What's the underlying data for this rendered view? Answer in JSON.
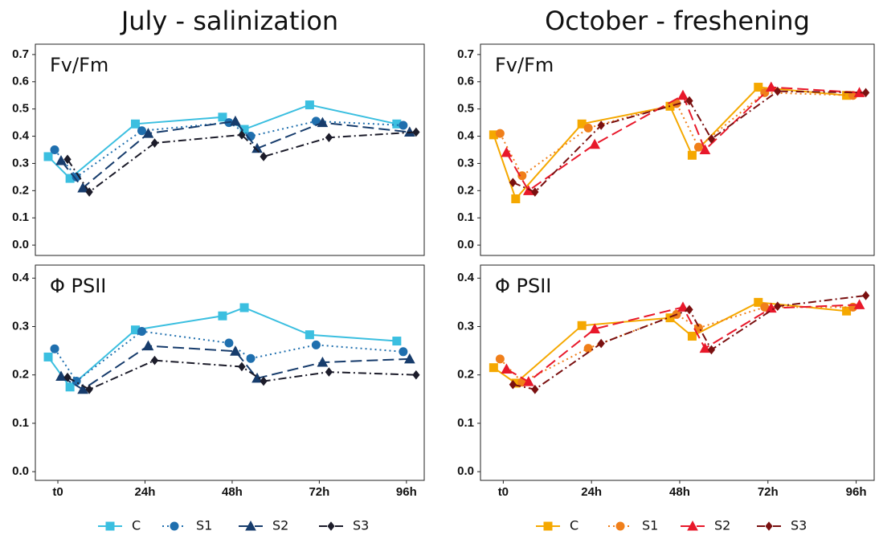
{
  "chart_data": [
    {
      "type": "line",
      "title": "July - salinization",
      "x": [
        0,
        6,
        24,
        48,
        54,
        72,
        96
      ],
      "xlim": [
        -6.2,
        100.9
      ],
      "xticks": [
        {
          "value": 0,
          "label": "t0"
        },
        {
          "value": 24,
          "label": "24h"
        },
        {
          "value": 48,
          "label": "48h"
        },
        {
          "value": 72,
          "label": "72h"
        },
        {
          "value": 96,
          "label": "96h"
        }
      ],
      "legend": [
        {
          "name": "C",
          "color": "#3bbfe0",
          "marker": "square",
          "dash": "solid"
        },
        {
          "name": "S1",
          "color": "#1f6fae",
          "marker": "circle",
          "dash": "dotted"
        },
        {
          "name": "S2",
          "color": "#173c6c",
          "marker": "triangle",
          "dash": "dashed"
        },
        {
          "name": "S3",
          "color": "#1c1c2a",
          "marker": "diamond",
          "dash": "dotdash"
        }
      ],
      "panels": [
        {
          "label": "Fv/Fm",
          "ylim": [
            -0.038,
            0.738
          ],
          "yticks": [
            {
              "value": 0,
              "label": "0.0"
            },
            0.1,
            0.2,
            0.3,
            0.4,
            0.5,
            0.6,
            0.7
          ],
          "series": [
            {
              "values": [
                0.325,
                0.245,
                0.445,
                0.47,
                0.425,
                0.515,
                0.445
              ]
            },
            {
              "values": [
                0.35,
                0.25,
                0.42,
                0.45,
                0.4,
                0.455,
                0.44
              ]
            },
            {
              "values": [
                0.31,
                0.21,
                0.41,
                0.455,
                0.355,
                0.45,
                0.415
              ]
            },
            {
              "values": [
                0.315,
                0.195,
                0.375,
                0.405,
                0.325,
                0.395,
                0.415
              ]
            }
          ]
        },
        {
          "label": "Φ PSII",
          "ylim": [
            -0.018,
            0.427
          ],
          "yticks": [
            {
              "value": 0,
              "label": "0.0"
            },
            0.1,
            0.2,
            0.3,
            0.4
          ],
          "series": [
            {
              "values": [
                0.237,
                0.175,
                0.293,
                0.322,
                0.339,
                0.283,
                0.27
              ]
            },
            {
              "values": [
                0.254,
                0.187,
                0.29,
                0.266,
                0.234,
                0.262,
                0.248
              ]
            },
            {
              "values": [
                0.197,
                0.17,
                0.26,
                0.249,
                0.193,
                0.226,
                0.233
              ]
            },
            {
              "values": [
                0.195,
                0.17,
                0.23,
                0.217,
                0.187,
                0.206,
                0.2
              ]
            }
          ]
        }
      ]
    },
    {
      "type": "line",
      "title": "October - freshening",
      "x": [
        0,
        6,
        24,
        48,
        54,
        72,
        96
      ],
      "xlim": [
        -6.2,
        100.9
      ],
      "xticks": [
        {
          "value": 0,
          "label": "t0"
        },
        {
          "value": 24,
          "label": "24h"
        },
        {
          "value": 48,
          "label": "48h"
        },
        {
          "value": 72,
          "label": "72h"
        },
        {
          "value": 96,
          "label": "96h"
        }
      ],
      "legend": [
        {
          "name": "C",
          "color": "#f5a800",
          "marker": "square",
          "dash": "solid"
        },
        {
          "name": "S1",
          "color": "#f07f1a",
          "marker": "circle",
          "dash": "dotted"
        },
        {
          "name": "S2",
          "color": "#e8182a",
          "marker": "triangle",
          "dash": "dashed"
        },
        {
          "name": "S3",
          "color": "#7a1010",
          "marker": "diamond",
          "dash": "dotdash"
        }
      ],
      "panels": [
        {
          "label": "Fv/Fm",
          "ylim": [
            -0.038,
            0.738
          ],
          "yticks": [
            {
              "value": 0,
              "label": "0.0"
            },
            0.1,
            0.2,
            0.3,
            0.4,
            0.5,
            0.6,
            0.7
          ],
          "series": [
            {
              "values": [
                0.405,
                0.17,
                0.445,
                0.51,
                0.33,
                0.58,
                0.55
              ]
            },
            {
              "values": [
                0.41,
                0.255,
                0.43,
                0.52,
                0.36,
                0.56,
                0.55
              ]
            },
            {
              "values": [
                0.34,
                0.2,
                0.37,
                0.55,
                0.35,
                0.58,
                0.56
              ]
            },
            {
              "values": [
                0.23,
                0.195,
                0.44,
                0.53,
                0.39,
                0.565,
                0.56
              ]
            }
          ]
        },
        {
          "label": "Φ PSII",
          "ylim": [
            -0.018,
            0.427
          ],
          "yticks": [
            {
              "value": 0,
              "label": "0.0"
            },
            0.1,
            0.2,
            0.3,
            0.4
          ],
          "series": [
            {
              "values": [
                0.215,
                0.183,
                0.302,
                0.318,
                0.28,
                0.35,
                0.332
              ]
            },
            {
              "values": [
                0.233,
                0.185,
                0.255,
                0.325,
                0.297,
                0.34,
                0.34
              ]
            },
            {
              "values": [
                0.212,
                0.186,
                0.295,
                0.34,
                0.255,
                0.338,
                0.345
              ]
            },
            {
              "values": [
                0.18,
                0.17,
                0.265,
                0.335,
                0.252,
                0.342,
                0.364
              ]
            }
          ]
        }
      ]
    }
  ]
}
